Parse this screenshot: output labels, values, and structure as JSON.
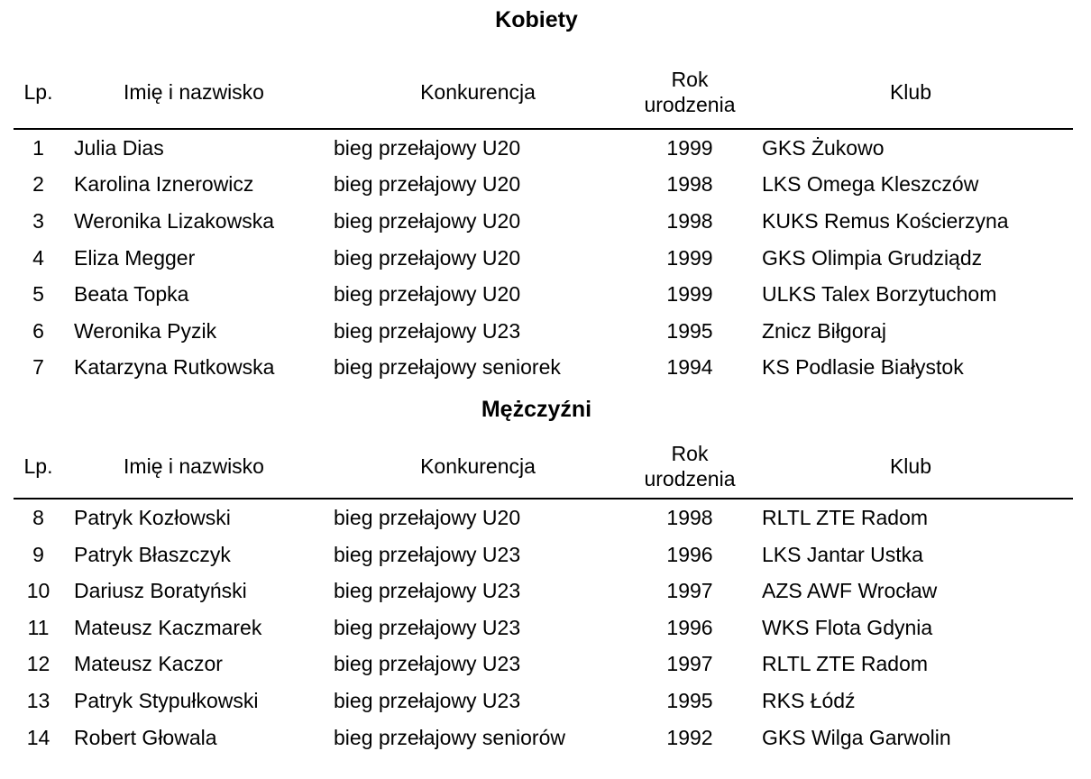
{
  "document": {
    "columns": {
      "lp": "Lp.",
      "name": "Imię i nazwisko",
      "event": "Konkurencja",
      "year": "Rok urodzenia",
      "club": "Klub"
    },
    "sections": [
      {
        "title": "Kobiety",
        "rows": [
          {
            "lp": "1",
            "name": "Julia Dias",
            "event": "bieg przełajowy U20",
            "year": "1999",
            "club": "GKS Żukowo"
          },
          {
            "lp": "2",
            "name": "Karolina Iznerowicz",
            "event": "bieg przełajowy U20",
            "year": "1998",
            "club": "LKS Omega Kleszczów"
          },
          {
            "lp": "3",
            "name": "Weronika Lizakowska",
            "event": "bieg przełajowy U20",
            "year": "1998",
            "club": "KUKS Remus Kościerzyna"
          },
          {
            "lp": "4",
            "name": "Eliza Megger",
            "event": "bieg przełajowy U20",
            "year": "1999",
            "club": "GKS Olimpia Grudziądz"
          },
          {
            "lp": "5",
            "name": "Beata Topka",
            "event": "bieg przełajowy U20",
            "year": "1999",
            "club": "ULKS Talex Borzytuchom"
          },
          {
            "lp": "6",
            "name": "Weronika Pyzik",
            "event": "bieg przełajowy U23",
            "year": "1995",
            "club": "Znicz Biłgoraj"
          },
          {
            "lp": "7",
            "name": "Katarzyna Rutkowska",
            "event": "bieg przełajowy seniorek",
            "year": "1994",
            "club": "KS Podlasie Białystok"
          }
        ]
      },
      {
        "title": "Mężczyźni",
        "rows": [
          {
            "lp": "8",
            "name": "Patryk Kozłowski",
            "event": "bieg przełajowy U20",
            "year": "1998",
            "club": "RLTL ZTE Radom"
          },
          {
            "lp": "9",
            "name": "Patryk Błaszczyk",
            "event": "bieg przełajowy U23",
            "year": "1996",
            "club": "LKS Jantar Ustka"
          },
          {
            "lp": "10",
            "name": "Dariusz Boratyński",
            "event": "bieg przełajowy U23",
            "year": "1997",
            "club": "AZS AWF Wrocław"
          },
          {
            "lp": "11",
            "name": "Mateusz Kaczmarek",
            "event": "bieg przełajowy U23",
            "year": "1996",
            "club": "WKS Flota Gdynia"
          },
          {
            "lp": "12",
            "name": "Mateusz Kaczor",
            "event": "bieg przełajowy U23",
            "year": "1997",
            "club": "RLTL ZTE Radom"
          },
          {
            "lp": "13",
            "name": "Patryk Stypułkowski",
            "event": "bieg przełajowy U23",
            "year": "1995",
            "club": "RKS Łódź"
          },
          {
            "lp": "14",
            "name": "Robert Głowala",
            "event": "bieg przełajowy seniorów",
            "year": "1992",
            "club": "GKS Wilga Garwolin"
          }
        ]
      }
    ]
  }
}
